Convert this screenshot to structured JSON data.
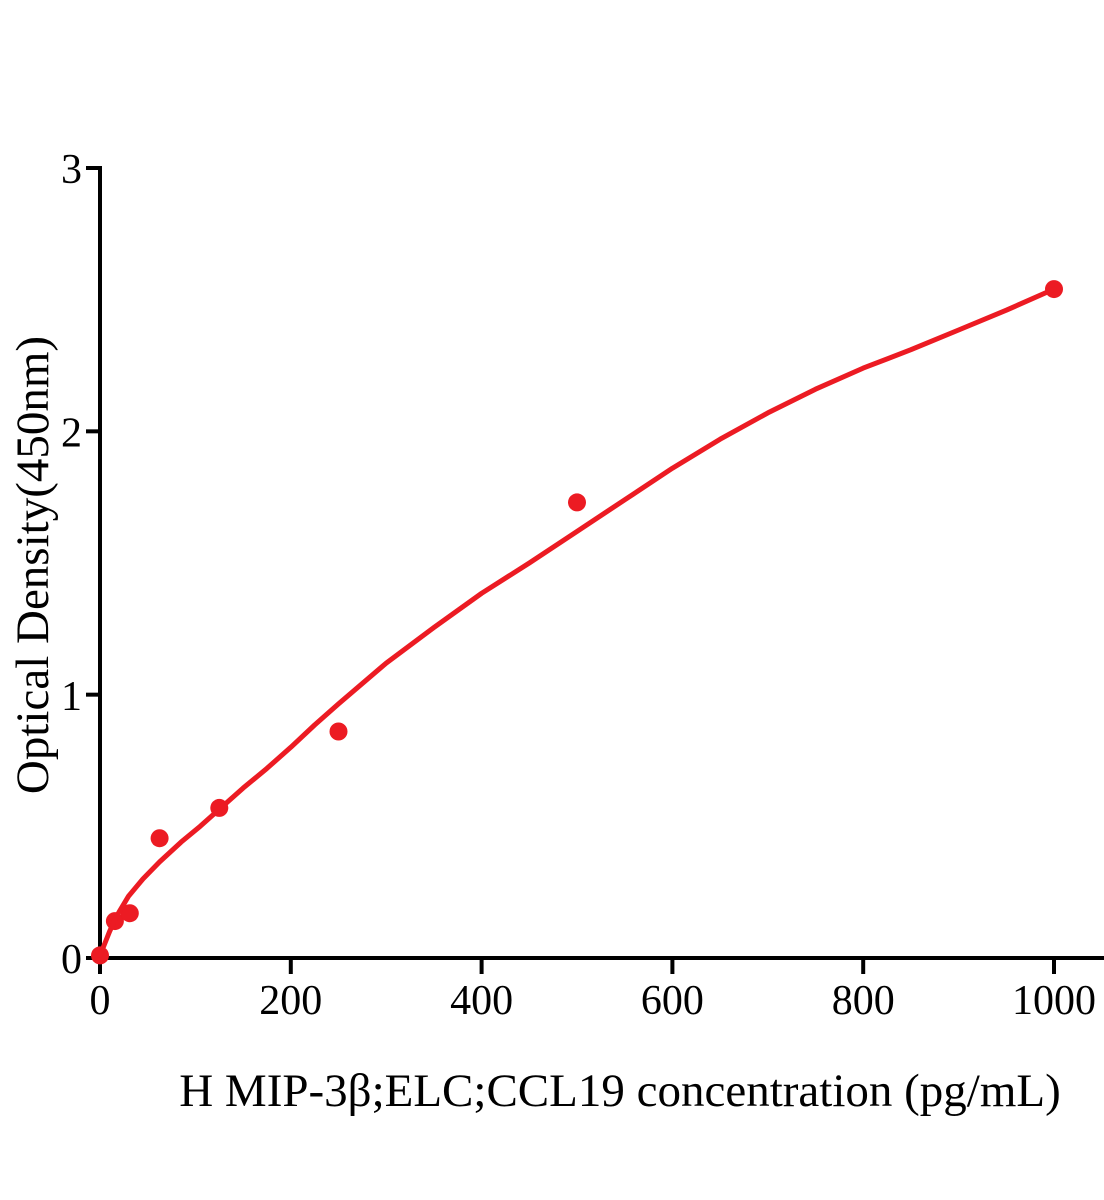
{
  "chart_data": {
    "type": "scatter",
    "title": "",
    "xlabel": "H MIP-3β;ELC;CCL19 concentration (pg/mL)",
    "ylabel": "Optical Density(450nm)",
    "xlim": [
      0,
      1000
    ],
    "ylim": [
      0,
      3
    ],
    "x_ticks": [
      0,
      200,
      400,
      600,
      800,
      1000
    ],
    "y_ticks": [
      0,
      1,
      2,
      3
    ],
    "grid": false,
    "legend": false,
    "axis_color": "#000000",
    "marker_color": "#EC1B23",
    "line_color": "#EC1B23",
    "background_color": "#FFFFFF",
    "series": [
      {
        "name": "standard-points",
        "type": "scatter",
        "points": [
          [
            0,
            0.01
          ],
          [
            15.6,
            0.14
          ],
          [
            31.2,
            0.17
          ],
          [
            62.5,
            0.455
          ],
          [
            125,
            0.57
          ],
          [
            250,
            0.86
          ],
          [
            500,
            1.73
          ],
          [
            1000,
            2.54
          ]
        ]
      },
      {
        "name": "fitted-curve",
        "type": "line",
        "points": [
          [
            0,
            0.01
          ],
          [
            5,
            0.055
          ],
          [
            10,
            0.1
          ],
          [
            15,
            0.14
          ],
          [
            20,
            0.175
          ],
          [
            30,
            0.235
          ],
          [
            45,
            0.3
          ],
          [
            62.5,
            0.365
          ],
          [
            85,
            0.44
          ],
          [
            105,
            0.5
          ],
          [
            125,
            0.565
          ],
          [
            150,
            0.645
          ],
          [
            175,
            0.72
          ],
          [
            200,
            0.8
          ],
          [
            225,
            0.885
          ],
          [
            250,
            0.965
          ],
          [
            300,
            1.12
          ],
          [
            350,
            1.255
          ],
          [
            400,
            1.385
          ],
          [
            450,
            1.5
          ],
          [
            500,
            1.62
          ],
          [
            550,
            1.74
          ],
          [
            600,
            1.86
          ],
          [
            650,
            1.97
          ],
          [
            700,
            2.07
          ],
          [
            750,
            2.16
          ],
          [
            800,
            2.24
          ],
          [
            850,
            2.31
          ],
          [
            900,
            2.385
          ],
          [
            950,
            2.46
          ],
          [
            1000,
            2.54
          ]
        ]
      }
    ]
  }
}
